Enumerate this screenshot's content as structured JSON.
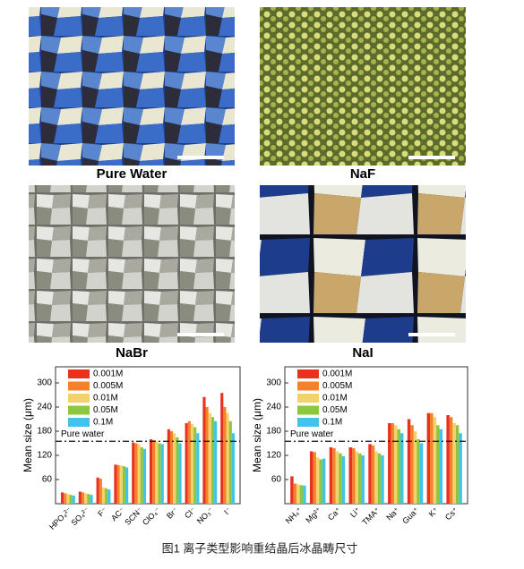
{
  "panels": [
    {
      "label": "Pure Water"
    },
    {
      "label": "NaF"
    },
    {
      "label": "NaBr"
    },
    {
      "label": "NaI"
    }
  ],
  "chart_data": [
    {
      "type": "bar",
      "y_label": "Mean size (μm)",
      "categories": [
        "HPO₄²⁻",
        "SO₄²⁻",
        "F⁻",
        "AC⁻",
        "SCN⁻",
        "ClO₄⁻",
        "Br⁻",
        "Cl⁻",
        "NO₃⁻",
        "I⁻"
      ],
      "series": [
        {
          "name": "0.001M",
          "color": "#e8321e",
          "values": [
            28,
            30,
            65,
            97,
            152,
            160,
            185,
            200,
            265,
            275
          ]
        },
        {
          "name": "0.005M",
          "color": "#f5822a",
          "values": [
            26,
            28,
            62,
            96,
            150,
            158,
            180,
            205,
            240,
            240
          ]
        },
        {
          "name": "0.01M",
          "color": "#f3d16b",
          "values": [
            24,
            26,
            40,
            95,
            148,
            155,
            175,
            198,
            225,
            225
          ]
        },
        {
          "name": "0.05M",
          "color": "#8dc63f",
          "values": [
            22,
            24,
            38,
            93,
            140,
            150,
            165,
            190,
            215,
            205
          ]
        },
        {
          "name": "0.1M",
          "color": "#41c4e8",
          "values": [
            20,
            22,
            35,
            90,
            136,
            148,
            150,
            175,
            205,
            175
          ]
        }
      ],
      "ylim": [
        0,
        340
      ],
      "yticks": [
        60,
        120,
        180,
        240,
        300
      ],
      "ref_line": {
        "value": 155,
        "label": "Pure water"
      }
    },
    {
      "type": "bar",
      "y_label": "Mean size (μm)",
      "categories": [
        "NH₄⁺",
        "Mg²⁺",
        "Ca⁺",
        "Li⁺",
        "TMA⁺",
        "Na⁺",
        "Gua⁺",
        "K⁺",
        "Cs⁺"
      ],
      "series": [
        {
          "name": "0.001M",
          "color": "#e8321e",
          "values": [
            68,
            130,
            140,
            140,
            148,
            200,
            210,
            225,
            220
          ]
        },
        {
          "name": "0.005M",
          "color": "#f5822a",
          "values": [
            50,
            128,
            138,
            138,
            145,
            200,
            195,
            225,
            215
          ]
        },
        {
          "name": "0.01M",
          "color": "#f3d16b",
          "values": [
            48,
            115,
            130,
            130,
            130,
            195,
            180,
            215,
            200
          ]
        },
        {
          "name": "0.05M",
          "color": "#8dc63f",
          "values": [
            46,
            110,
            125,
            125,
            125,
            185,
            160,
            195,
            195
          ]
        },
        {
          "name": "0.1M",
          "color": "#41c4e8",
          "values": [
            45,
            112,
            118,
            120,
            120,
            175,
            150,
            185,
            175
          ]
        }
      ],
      "ylim": [
        0,
        340
      ],
      "yticks": [
        60,
        120,
        180,
        240,
        300
      ],
      "ref_line": {
        "value": 155,
        "label": "Pure water"
      }
    }
  ],
  "caption": "图1 离子类型影响重结晶后冰晶畴尺寸"
}
